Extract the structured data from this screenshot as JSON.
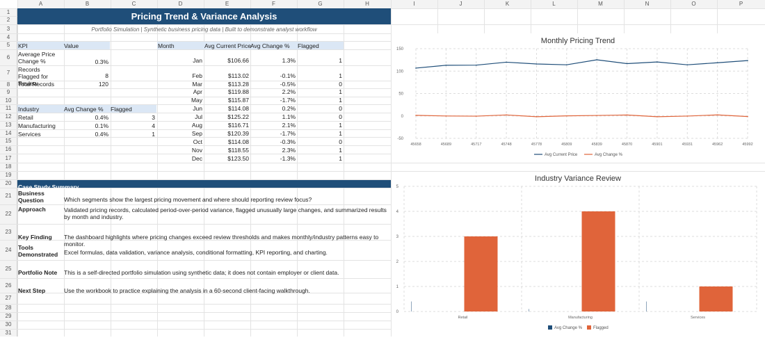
{
  "columns": [
    "A",
    "B",
    "C",
    "D",
    "E",
    "F",
    "G",
    "H",
    "I",
    "J",
    "K",
    "L",
    "M",
    "N",
    "O",
    "P"
  ],
  "rows": [
    "1",
    "2",
    "3",
    "4",
    "5",
    "6",
    "7",
    "8",
    "9",
    "10",
    "11",
    "12",
    "13",
    "14",
    "15",
    "16",
    "17",
    "18",
    "19",
    "20",
    "21",
    "22",
    "23",
    "24",
    "25",
    "26",
    "27",
    "28",
    "29",
    "30",
    "31"
  ],
  "title": "Pricing Trend & Variance Analysis",
  "subtitle": "Portfolio Simulation | Synthetic business pricing data | Built to demonstrate analyst workflow",
  "kpi": {
    "headers": [
      "KPI",
      "Value"
    ],
    "rows": [
      {
        "label": "Average Price Change %",
        "value": "0.3%"
      },
      {
        "label": "Records Flagged for Review",
        "value": "8"
      },
      {
        "label": "Total Records",
        "value": "120"
      }
    ]
  },
  "industry_table": {
    "headers": [
      "Industry",
      "Avg Change %",
      "Flagged"
    ],
    "rows": [
      {
        "industry": "Retail",
        "change": "0.4%",
        "flagged": "3"
      },
      {
        "industry": "Manufacturing",
        "change": "0.1%",
        "flagged": "4"
      },
      {
        "industry": "Services",
        "change": "0.4%",
        "flagged": "1"
      }
    ]
  },
  "month_table": {
    "headers": [
      "Month",
      "Avg Current Price",
      "Avg Change %",
      "Flagged"
    ],
    "rows": [
      {
        "month": "Jan",
        "price": "$106.66",
        "change": "1.3%",
        "flagged": "1"
      },
      {
        "month": "Feb",
        "price": "$113.02",
        "change": "-0.1%",
        "flagged": "1"
      },
      {
        "month": "Mar",
        "price": "$113.28",
        "change": "-0.5%",
        "flagged": "0"
      },
      {
        "month": "Apr",
        "price": "$119.88",
        "change": "2.2%",
        "flagged": "1"
      },
      {
        "month": "May",
        "price": "$115.87",
        "change": "-1.7%",
        "flagged": "1"
      },
      {
        "month": "Jun",
        "price": "$114.08",
        "change": "0.2%",
        "flagged": "0"
      },
      {
        "month": "Jul",
        "price": "$125.22",
        "change": "1.1%",
        "flagged": "0"
      },
      {
        "month": "Aug",
        "price": "$116.71",
        "change": "2.1%",
        "flagged": "1"
      },
      {
        "month": "Sep",
        "price": "$120.39",
        "change": "-1.7%",
        "flagged": "1"
      },
      {
        "month": "Oct",
        "price": "$114.08",
        "change": "-0.3%",
        "flagged": "0"
      },
      {
        "month": "Nov",
        "price": "$118.55",
        "change": "2.3%",
        "flagged": "1"
      },
      {
        "month": "Dec",
        "price": "$123.50",
        "change": "-1.3%",
        "flagged": "1"
      }
    ]
  },
  "case_study": {
    "header": "Case Study Summary",
    "items": [
      {
        "label": "Business Question",
        "text": "Which segments show the largest pricing movement and where should reporting review focus?"
      },
      {
        "label": "Approach",
        "text": "Validated pricing records, calculated period-over-period variance, flagged unusually large changes, and summarized results by month and industry."
      },
      {
        "label": "Key Finding",
        "text": "The dashboard highlights where pricing changes exceed review thresholds and makes monthly/industry patterns easy to monitor."
      },
      {
        "label": "Tools Demonstrated",
        "text": "Excel formulas, data validation, variance analysis, conditional formatting, KPI reporting, and charting."
      },
      {
        "label": "Portfolio Note",
        "text": "This is a self-directed portfolio simulation using synthetic data; it does not contain employer or client data."
      },
      {
        "label": "Next Step",
        "text": "Use the workbook to practice explaining the analysis in a 60-second client-facing walkthrough."
      }
    ]
  },
  "colors": {
    "title_bg": "#1f4e79",
    "header_fill": "#dbe7f5",
    "line_blue": "#1f4e79",
    "line_orange": "#e0643a",
    "bar_orange": "#e0643a"
  },
  "chart_data": [
    {
      "type": "line",
      "title": "Monthly Pricing Trend",
      "x": [
        "45658",
        "45689",
        "45717",
        "45748",
        "45778",
        "45809",
        "45839",
        "45870",
        "45901",
        "45931",
        "45962",
        "45992"
      ],
      "series": [
        {
          "name": "Avg Current Price",
          "values": [
            106.66,
            113.02,
            113.28,
            119.88,
            115.87,
            114.08,
            125.22,
            116.71,
            120.39,
            114.08,
            118.55,
            123.5
          ]
        },
        {
          "name": "Avg Change %",
          "values": [
            1.3,
            -0.1,
            -0.5,
            2.2,
            -1.7,
            0.2,
            1.1,
            2.1,
            -1.7,
            -0.3,
            2.3,
            -1.3
          ]
        }
      ],
      "ylim": [
        -50,
        150
      ],
      "yticks": [
        "150",
        "100",
        "50",
        "0",
        "-50"
      ],
      "grid": true,
      "legend": "bottom"
    },
    {
      "type": "bar",
      "title": "Industry Variance Review",
      "categories": [
        "Retail",
        "Manufacturing",
        "Services"
      ],
      "series": [
        {
          "name": "Avg Change %",
          "values": [
            0.4,
            0.1,
            0.4
          ]
        },
        {
          "name": "Flagged",
          "values": [
            3,
            4,
            1
          ]
        }
      ],
      "ylim": [
        0,
        5
      ],
      "yticks": [
        "5",
        "4",
        "3",
        "2",
        "1",
        "0"
      ],
      "grid": true,
      "legend": "bottom"
    }
  ]
}
